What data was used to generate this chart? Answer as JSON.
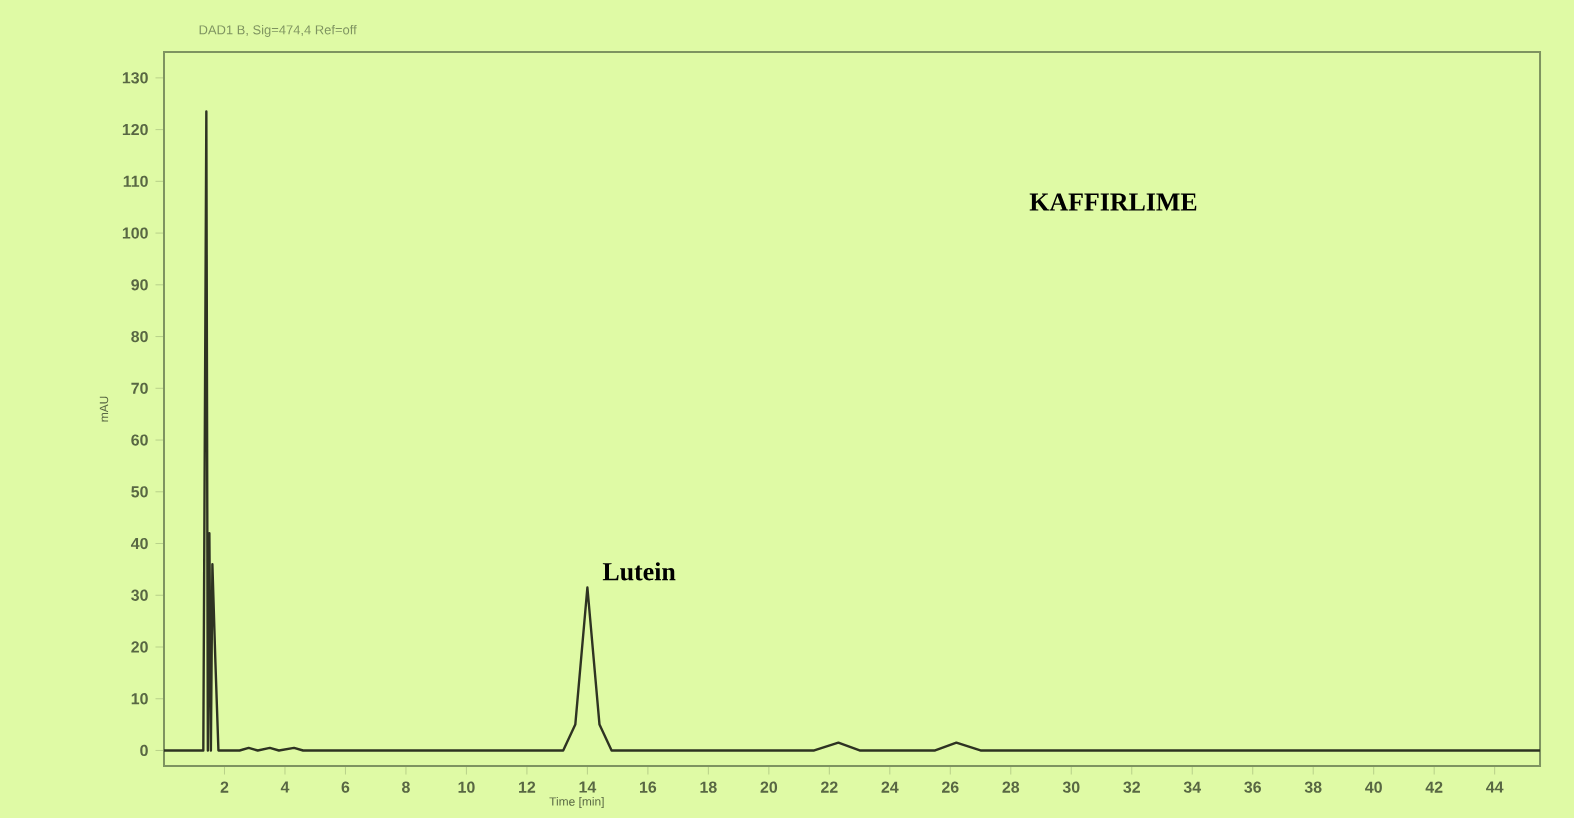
{
  "chart_data": {
    "type": "line",
    "subtitle": "DAD1 B, Sig=474,4 Ref=off",
    "title": "KAFFIRLIME",
    "xlabel": "Time [min]",
    "ylabel": "mAU",
    "color": "#2e3322",
    "x": [
      0,
      1.0,
      1.3,
      1.4,
      1.45,
      1.5,
      1.55,
      1.6,
      1.7,
      1.8,
      2.5,
      2.8,
      3.1,
      3.5,
      3.8,
      4.3,
      4.6,
      13.2,
      13.6,
      14.0,
      14.4,
      14.8,
      21.5,
      22.3,
      23.0,
      25.5,
      26.2,
      27.0,
      45.5
    ],
    "values": [
      0,
      0,
      0,
      123.5,
      0,
      42,
      0,
      36,
      17,
      0,
      0,
      0.5,
      0,
      0.5,
      0,
      0.5,
      0,
      0,
      5,
      31.5,
      5,
      0,
      0,
      1.5,
      0,
      0,
      1.5,
      0,
      0
    ],
    "xlim": [
      0,
      45.5
    ],
    "ylim": [
      -3,
      135
    ],
    "xticks": [
      2,
      4,
      6,
      8,
      10,
      12,
      14,
      16,
      18,
      20,
      22,
      24,
      26,
      28,
      30,
      32,
      34,
      36,
      38,
      40,
      42,
      44
    ],
    "yticks": [
      0,
      10,
      20,
      30,
      40,
      50,
      60,
      70,
      80,
      90,
      100,
      110,
      120,
      130
    ],
    "annotations": [
      {
        "text": "Lutein",
        "x": 14,
        "y": 31.5
      }
    ],
    "grid": false
  }
}
